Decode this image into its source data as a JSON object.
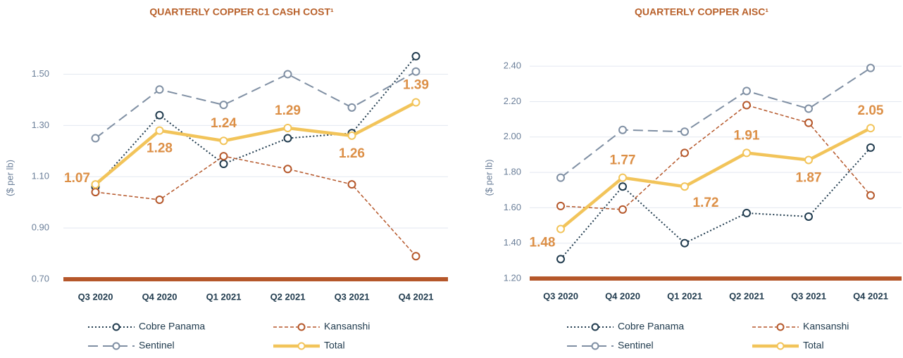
{
  "chart_data": [
    {
      "type": "line",
      "title": "QUARTERLY COPPER C1 CASH COST¹",
      "y_label": "($ per lb)",
      "categories": [
        "Q3 2020",
        "Q4 2020",
        "Q1 2021",
        "Q2 2021",
        "Q3 2021",
        "Q4 2021"
      ],
      "series": [
        {
          "name": "Cobre Panama",
          "color": "#1f3a4d",
          "style": "dotted",
          "values": [
            1.06,
            1.34,
            1.15,
            1.25,
            1.27,
            1.57
          ]
        },
        {
          "name": "Kansanshi",
          "color": "#b5572a",
          "style": "dashed",
          "values": [
            1.04,
            1.01,
            1.18,
            1.13,
            1.07,
            0.79
          ]
        },
        {
          "name": "Sentinel",
          "color": "#7f8fa3",
          "style": "longdash",
          "values": [
            1.25,
            1.44,
            1.38,
            1.5,
            1.37,
            1.51
          ]
        },
        {
          "name": "Total",
          "color": "#f2c45a",
          "style": "solid",
          "values": [
            1.07,
            1.28,
            1.24,
            1.29,
            1.26,
            1.39
          ],
          "labeled": true
        }
      ],
      "ylim": [
        0.7,
        1.6
      ],
      "yticks": [
        {
          "value": 0.7,
          "label": "0.70"
        },
        {
          "value": 0.9,
          "label": "0.90"
        },
        {
          "value": 1.1,
          "label": "1.10"
        },
        {
          "value": 1.3,
          "label": "1.30"
        },
        {
          "value": 1.5,
          "label": "1.50"
        }
      ],
      "grid": true
    },
    {
      "type": "line",
      "title": "QUARTERLY COPPER AISC¹",
      "y_label": "($ per lb)",
      "categories": [
        "Q3 2020",
        "Q4 2020",
        "Q1 2021",
        "Q2 2021",
        "Q3 2021",
        "Q4 2021"
      ],
      "series": [
        {
          "name": "Cobre Panama",
          "color": "#1f3a4d",
          "style": "dotted",
          "values": [
            1.31,
            1.72,
            1.4,
            1.57,
            1.55,
            1.94
          ]
        },
        {
          "name": "Kansanshi",
          "color": "#b5572a",
          "style": "dashed",
          "values": [
            1.61,
            1.59,
            1.91,
            2.18,
            2.08,
            1.67
          ]
        },
        {
          "name": "Sentinel",
          "color": "#7f8fa3",
          "style": "longdash",
          "values": [
            1.77,
            2.04,
            2.03,
            2.26,
            2.16,
            2.39
          ]
        },
        {
          "name": "Total",
          "color": "#f2c45a",
          "style": "solid",
          "values": [
            1.48,
            1.77,
            1.72,
            1.91,
            1.87,
            2.05
          ],
          "labeled": true
        }
      ],
      "ylim": [
        1.2,
        2.5
      ],
      "yticks": [
        {
          "value": 1.2,
          "label": "1.20"
        },
        {
          "value": 1.4,
          "label": "1.40"
        },
        {
          "value": 1.6,
          "label": "1.60"
        },
        {
          "value": 1.8,
          "label": "1.80"
        },
        {
          "value": 2.0,
          "label": "2.00"
        },
        {
          "value": 2.2,
          "label": "2.20"
        },
        {
          "value": 2.4,
          "label": "2.40"
        }
      ],
      "grid": true
    }
  ]
}
